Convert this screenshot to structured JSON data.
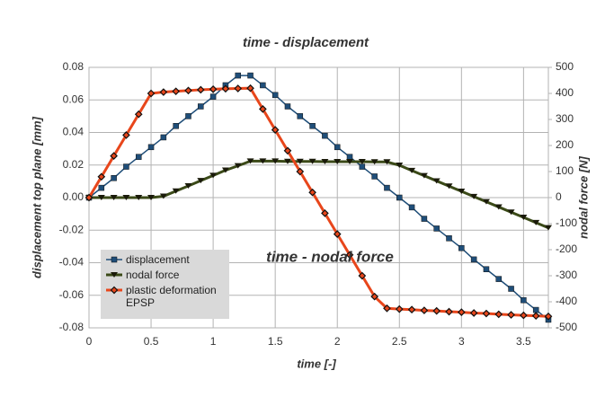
{
  "chart_data": {
    "type": "line",
    "title": "time - displacement",
    "annotation": "time - nodal force",
    "xlabel": "time [-]",
    "ylabel": "displacement top plane [mm]",
    "y2label": "nodal force [N]",
    "x": [
      0,
      0.1,
      0.2,
      0.3,
      0.4,
      0.5,
      0.6,
      0.7,
      0.8,
      0.9,
      1.0,
      1.1,
      1.2,
      1.3,
      1.4,
      1.5,
      1.6,
      1.7,
      1.8,
      1.9,
      2.0,
      2.1,
      2.2,
      2.3,
      2.4,
      2.5,
      2.6,
      2.7,
      2.8,
      2.9,
      3.0,
      3.1,
      3.2,
      3.3,
      3.4,
      3.5,
      3.6,
      3.7
    ],
    "series": [
      {
        "name": "displacement",
        "color": "#1f4e79",
        "marker": "square",
        "axis": "y",
        "values": [
          0,
          0.006,
          0.012,
          0.019,
          0.025,
          0.031,
          0.037,
          0.044,
          0.05,
          0.056,
          0.062,
          0.069,
          0.075,
          0.075,
          0.069,
          0.063,
          0.056,
          0.05,
          0.044,
          0.038,
          0.031,
          0.025,
          0.019,
          0.013,
          0.006,
          0,
          -0.006,
          -0.013,
          -0.019,
          -0.025,
          -0.031,
          -0.038,
          -0.044,
          -0.05,
          -0.056,
          -0.063,
          -0.069,
          -0.075
        ]
      },
      {
        "name": "nodal force",
        "color": "#3b4a18",
        "marker": "triangle",
        "axis": "y2",
        "values": [
          0,
          0,
          0,
          0,
          0,
          0,
          5,
          25,
          45,
          65,
          85,
          105,
          122,
          140,
          140,
          140,
          139,
          139,
          139,
          138,
          138,
          138,
          138,
          137,
          137,
          124,
          104,
          84,
          64,
          44,
          24,
          4,
          -16,
          -36,
          -56,
          -76,
          -96,
          -116
        ]
      },
      {
        "name": "plastic deformation EPSP",
        "color": "#e8461b",
        "marker": "diamond",
        "axis": "y2",
        "values": [
          0,
          80,
          160,
          240,
          320,
          400,
          405,
          408,
          411,
          414,
          416,
          418,
          419,
          420,
          340,
          260,
          180,
          100,
          20,
          -60,
          -140,
          -220,
          -300,
          -380,
          -425,
          -428,
          -430,
          -433,
          -435,
          -438,
          -440,
          -443,
          -445,
          -448,
          -450,
          -452,
          -454,
          -456
        ]
      }
    ],
    "xlim": [
      0,
      3.7
    ],
    "xticks": [
      0,
      0.5,
      1,
      1.5,
      2,
      2.5,
      3,
      3.5
    ],
    "ylim": [
      -0.08,
      0.08
    ],
    "yticks": [
      {
        "value": -0.08,
        "label": "-0.08"
      },
      {
        "value": -0.06,
        "label": "-0.06"
      },
      {
        "value": -0.04,
        "label": "-0.04"
      },
      {
        "value": -0.02,
        "label": "-0.02"
      },
      {
        "value": 0,
        "label": "0.00"
      },
      0.02,
      0.04,
      0.06,
      0.08
    ],
    "y2lim": [
      -500,
      500
    ],
    "y2ticks": [
      -500,
      -400,
      -300,
      -200,
      -100,
      0,
      100,
      200,
      300,
      400,
      500
    ],
    "grid": true,
    "legend": "lower left"
  }
}
